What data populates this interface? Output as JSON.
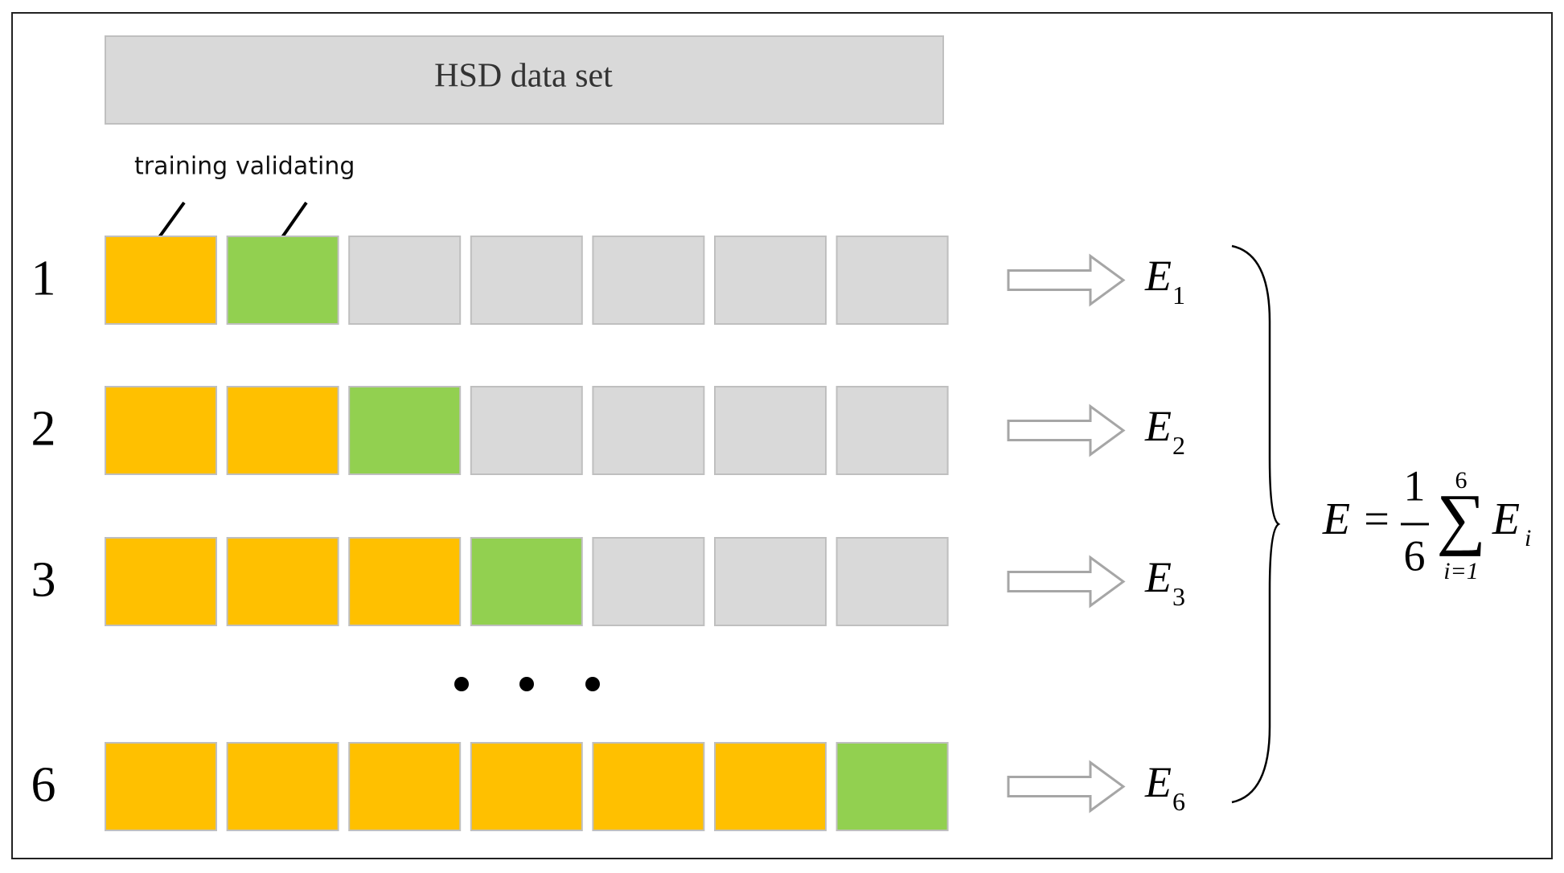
{
  "header": {
    "title": "HSD data set"
  },
  "legend": {
    "training": "training",
    "validating": "validating"
  },
  "colors": {
    "training": "#ffc000",
    "validating": "#92d050",
    "unused": "#d9d9d9"
  },
  "rows": [
    {
      "label": "1",
      "result": {
        "symbol": "E",
        "subscript": "1"
      }
    },
    {
      "label": "2",
      "result": {
        "symbol": "E",
        "subscript": "2"
      }
    },
    {
      "label": "3",
      "result": {
        "symbol": "E",
        "subscript": "3"
      }
    },
    {
      "label": "6",
      "result": {
        "symbol": "E",
        "subscript": "6"
      }
    }
  ],
  "folds_per_row": 7,
  "formula": {
    "lhs": "E",
    "equals": "=",
    "numerator": "1",
    "denominator": "6",
    "sum_symbol": "∑",
    "upper": "6",
    "lower": "i=1",
    "term": "E",
    "term_subscript": "i"
  }
}
